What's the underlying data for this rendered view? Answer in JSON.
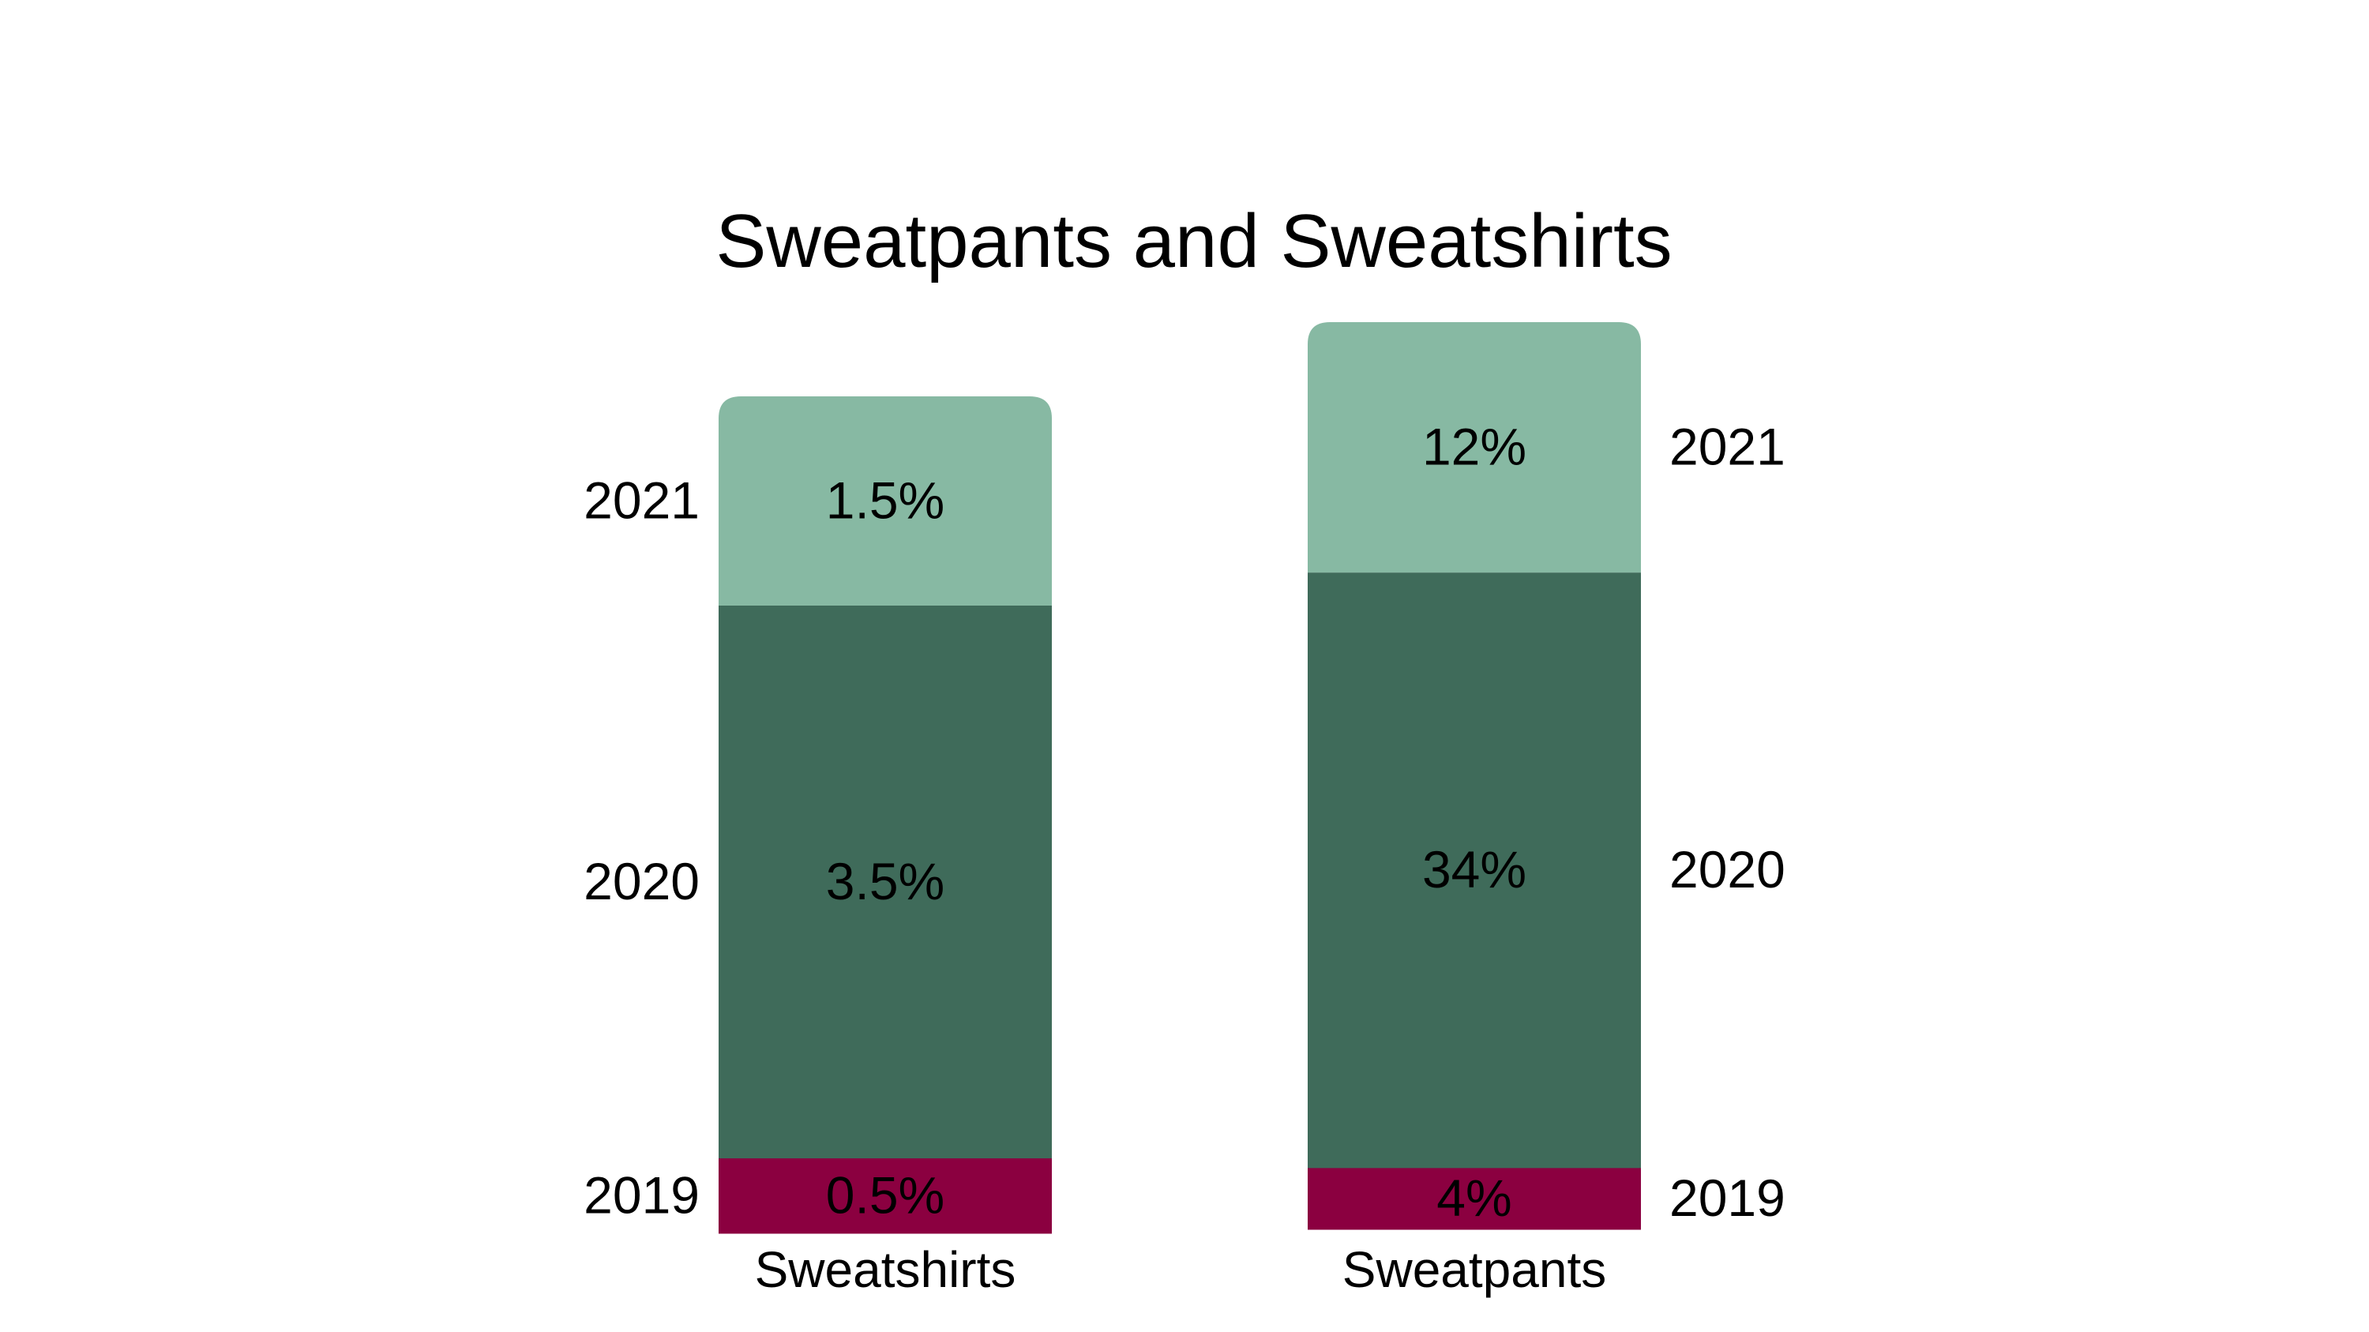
{
  "chart_data": {
    "type": "bar",
    "stacked": true,
    "title": "Sweatpants and Sweatshirts",
    "xlabel": "",
    "ylabel": "",
    "grid": false,
    "categories": [
      "Sweatshirts",
      "Sweatpants"
    ],
    "series": [
      {
        "name": "2019",
        "color": "#8b0040",
        "values": [
          0.5,
          4
        ],
        "labels": [
          "0.5%",
          "4%"
        ]
      },
      {
        "name": "2020",
        "color": "#3f6b5a",
        "values": [
          3.5,
          34
        ],
        "labels": [
          "3.5%",
          "34%"
        ]
      },
      {
        "name": "2021",
        "color": "#87b9a3",
        "values": [
          1.5,
          12
        ],
        "labels": [
          "1.5%",
          "12%"
        ]
      }
    ],
    "legend": "inline year labels beside bars (left of first bar, right of second bar)"
  }
}
